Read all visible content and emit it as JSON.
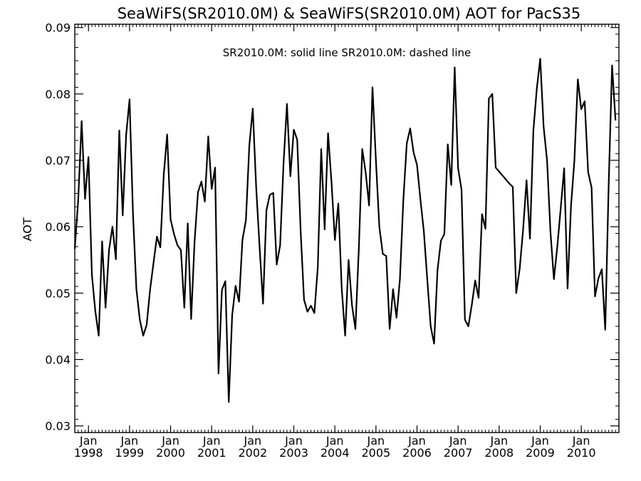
{
  "chart_data": {
    "type": "line",
    "title": "SeaWiFS(SR2010.0M) & SeaWiFS(SR2010.0M)  AOT for PacS35",
    "subtitle": "SR2010.0M: solid line   SR2010.0M: dashed line",
    "xlabel": "",
    "ylabel": "AOT",
    "x_range": [
      "1997-09",
      "2010-12"
    ],
    "ylim": [
      0.029,
      0.0905
    ],
    "y_ticks": [
      {
        "value": 0.03,
        "label": "0.03"
      },
      {
        "value": 0.04,
        "label": "0.04"
      },
      {
        "value": 0.05,
        "label": "0.05"
      },
      {
        "value": 0.06,
        "label": "0.06"
      },
      {
        "value": 0.07,
        "label": "0.07"
      },
      {
        "value": 0.08,
        "label": "0.08"
      },
      {
        "value": 0.09,
        "label": "0.09"
      }
    ],
    "x_ticks": [
      {
        "date": "1998-01",
        "month": "Jan",
        "year": "1998"
      },
      {
        "date": "1999-01",
        "month": "Jan",
        "year": "1999"
      },
      {
        "date": "2000-01",
        "month": "Jan",
        "year": "2000"
      },
      {
        "date": "2001-01",
        "month": "Jan",
        "year": "2001"
      },
      {
        "date": "2002-01",
        "month": "Jan",
        "year": "2002"
      },
      {
        "date": "2003-01",
        "month": "Jan",
        "year": "2003"
      },
      {
        "date": "2004-01",
        "month": "Jan",
        "year": "2004"
      },
      {
        "date": "2005-01",
        "month": "Jan",
        "year": "2005"
      },
      {
        "date": "2006-01",
        "month": "Jan",
        "year": "2006"
      },
      {
        "date": "2007-01",
        "month": "Jan",
        "year": "2007"
      },
      {
        "date": "2008-01",
        "month": "Jan",
        "year": "2008"
      },
      {
        "date": "2009-01",
        "month": "Jan",
        "year": "2009"
      },
      {
        "date": "2010-01",
        "month": "Jan",
        "year": "2010"
      }
    ],
    "grid": false,
    "colors": {
      "line": "#000000",
      "axes": "#000000",
      "background": "#ffffff"
    },
    "series": [
      {
        "style": "solid",
        "points": [
          [
            "1997-09",
            0.0567
          ],
          [
            "1997-10",
            0.064
          ],
          [
            "1997-11",
            0.0759
          ],
          [
            "1997-12",
            0.0642
          ],
          [
            "1998-01",
            0.0705
          ],
          [
            "1998-02",
            0.0528
          ],
          [
            "1998-03",
            0.0473
          ],
          [
            "1998-04",
            0.0436
          ],
          [
            "1998-05",
            0.0578
          ],
          [
            "1998-06",
            0.0478
          ],
          [
            "1998-07",
            0.0565
          ],
          [
            "1998-08",
            0.06
          ],
          [
            "1998-09",
            0.0551
          ],
          [
            "1998-10",
            0.0745
          ],
          [
            "1998-11",
            0.0617
          ],
          [
            "1998-12",
            0.0738
          ],
          [
            "1999-01",
            0.0792
          ],
          [
            "1999-02",
            0.062
          ],
          [
            "1999-03",
            0.0506
          ],
          [
            "1999-04",
            0.046
          ],
          [
            "1999-05",
            0.0436
          ],
          [
            "1999-06",
            0.0452
          ],
          [
            "1999-07",
            0.0505
          ],
          [
            "1999-08",
            0.0545
          ],
          [
            "1999-09",
            0.0585
          ],
          [
            "1999-10",
            0.0569
          ],
          [
            "1999-11",
            0.0678
          ],
          [
            "1999-12",
            0.0739
          ],
          [
            "2000-01",
            0.0611
          ],
          [
            "2000-02",
            0.0589
          ],
          [
            "2000-03",
            0.0572
          ],
          [
            "2000-04",
            0.0565
          ],
          [
            "2000-05",
            0.0478
          ],
          [
            "2000-06",
            0.0605
          ],
          [
            "2000-07",
            0.0461
          ],
          [
            "2000-08",
            0.0578
          ],
          [
            "2000-09",
            0.0652
          ],
          [
            "2000-10",
            0.0668
          ],
          [
            "2000-11",
            0.0638
          ],
          [
            "2000-12",
            0.0736
          ],
          [
            "2001-01",
            0.0657
          ],
          [
            "2001-02",
            0.0689
          ],
          [
            "2001-03",
            0.0379
          ],
          [
            "2001-04",
            0.0505
          ],
          [
            "2001-05",
            0.0518
          ],
          [
            "2001-06",
            0.0336
          ],
          [
            "2001-07",
            0.0467
          ],
          [
            "2001-08",
            0.0511
          ],
          [
            "2001-09",
            0.0487
          ],
          [
            "2001-10",
            0.058
          ],
          [
            "2001-11",
            0.061
          ],
          [
            "2001-12",
            0.0723
          ],
          [
            "2002-01",
            0.0778
          ],
          [
            "2002-02",
            0.0659
          ],
          [
            "2002-03",
            0.0569
          ],
          [
            "2002-04",
            0.0484
          ],
          [
            "2002-05",
            0.0625
          ],
          [
            "2002-06",
            0.0648
          ],
          [
            "2002-07",
            0.0651
          ],
          [
            "2002-08",
            0.0543
          ],
          [
            "2002-09",
            0.0572
          ],
          [
            "2002-10",
            0.0695
          ],
          [
            "2002-11",
            0.0785
          ],
          [
            "2002-12",
            0.0676
          ],
          [
            "2003-01",
            0.0746
          ],
          [
            "2003-02",
            0.0731
          ],
          [
            "2003-03",
            0.0594
          ],
          [
            "2003-04",
            0.049
          ],
          [
            "2003-05",
            0.0472
          ],
          [
            "2003-06",
            0.0481
          ],
          [
            "2003-07",
            0.047
          ],
          [
            "2003-08",
            0.0539
          ],
          [
            "2003-09",
            0.0717
          ],
          [
            "2003-10",
            0.0596
          ],
          [
            "2003-11",
            0.0741
          ],
          [
            "2003-12",
            0.0668
          ],
          [
            "2004-01",
            0.058
          ],
          [
            "2004-02",
            0.0635
          ],
          [
            "2004-03",
            0.0507
          ],
          [
            "2004-04",
            0.0436
          ],
          [
            "2004-05",
            0.055
          ],
          [
            "2004-06",
            0.0482
          ],
          [
            "2004-07",
            0.0446
          ],
          [
            "2004-08",
            0.0566
          ],
          [
            "2004-09",
            0.0717
          ],
          [
            "2004-10",
            0.0682
          ],
          [
            "2004-11",
            0.0632
          ],
          [
            "2004-12",
            0.081
          ],
          [
            "2005-01",
            0.07
          ],
          [
            "2005-02",
            0.06
          ],
          [
            "2005-03",
            0.0559
          ],
          [
            "2005-04",
            0.0556
          ],
          [
            "2005-05",
            0.0446
          ],
          [
            "2005-06",
            0.0506
          ],
          [
            "2005-07",
            0.0463
          ],
          [
            "2005-08",
            0.0521
          ],
          [
            "2005-09",
            0.064
          ],
          [
            "2005-10",
            0.0725
          ],
          [
            "2005-11",
            0.0748
          ],
          [
            "2005-12",
            0.0712
          ],
          [
            "2006-01",
            0.0693
          ],
          [
            "2006-02",
            0.0641
          ],
          [
            "2006-03",
            0.0593
          ],
          [
            "2006-04",
            0.0521
          ],
          [
            "2006-05",
            0.045
          ],
          [
            "2006-06",
            0.0424
          ],
          [
            "2006-07",
            0.0535
          ],
          [
            "2006-08",
            0.0579
          ],
          [
            "2006-09",
            0.0589
          ],
          [
            "2006-10",
            0.0724
          ],
          [
            "2006-11",
            0.0663
          ],
          [
            "2006-12",
            0.084
          ],
          [
            "2007-01",
            0.0688
          ],
          [
            "2007-02",
            0.0656
          ],
          [
            "2007-03",
            0.046
          ],
          [
            "2007-04",
            0.045
          ],
          [
            "2007-05",
            0.0482
          ],
          [
            "2007-06",
            0.0519
          ],
          [
            "2007-07",
            0.0493
          ],
          [
            "2007-08",
            0.0619
          ],
          [
            "2007-09",
            0.0597
          ],
          [
            "2007-10",
            0.0793
          ],
          [
            "2007-11",
            0.08
          ],
          [
            "2007-12",
            0.0689
          ],
          [
            "2008-04",
            0.0665
          ],
          [
            "2008-05",
            0.066
          ],
          [
            "2008-06",
            0.05
          ],
          [
            "2008-07",
            0.0537
          ],
          [
            "2008-08",
            0.0596
          ],
          [
            "2008-09",
            0.067
          ],
          [
            "2008-10",
            0.0582
          ],
          [
            "2008-11",
            0.0745
          ],
          [
            "2008-12",
            0.0808
          ],
          [
            "2009-01",
            0.0853
          ],
          [
            "2009-02",
            0.075
          ],
          [
            "2009-03",
            0.07
          ],
          [
            "2009-04",
            0.0592
          ],
          [
            "2009-05",
            0.0521
          ],
          [
            "2009-06",
            0.057
          ],
          [
            "2009-07",
            0.0628
          ],
          [
            "2009-08",
            0.0688
          ],
          [
            "2009-09",
            0.0507
          ],
          [
            "2009-10",
            0.0631
          ],
          [
            "2009-11",
            0.07
          ],
          [
            "2009-12",
            0.0822
          ],
          [
            "2010-01",
            0.0777
          ],
          [
            "2010-02",
            0.0789
          ],
          [
            "2010-03",
            0.0682
          ],
          [
            "2010-04",
            0.0659
          ],
          [
            "2010-05",
            0.0495
          ],
          [
            "2010-06",
            0.0522
          ],
          [
            "2010-07",
            0.0536
          ],
          [
            "2010-08",
            0.0445
          ],
          [
            "2010-09",
            0.0663
          ],
          [
            "2010-10",
            0.0843
          ],
          [
            "2010-11",
            0.076
          ]
        ]
      }
    ]
  }
}
